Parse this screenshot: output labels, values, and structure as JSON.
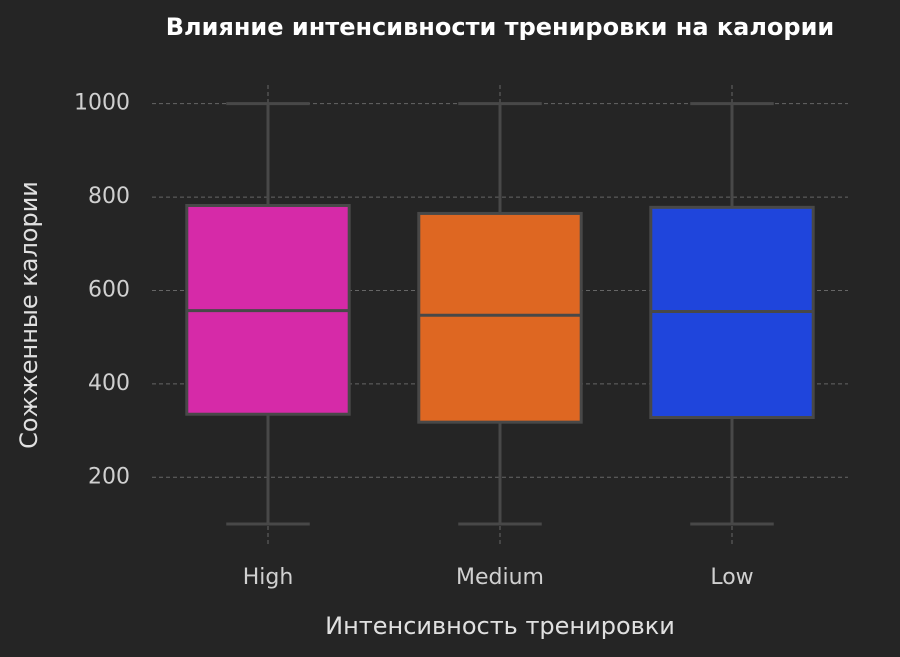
{
  "chart_data": {
    "type": "box",
    "title": "Влияние интенсивности тренировки на калории",
    "x_label": "Интенсивность тренировки",
    "y_label": "Сожженные калории",
    "categories": [
      "High",
      "Medium",
      "Low"
    ],
    "colors": [
      "#d62aa8",
      "#de6722",
      "#1f45dc"
    ],
    "boxes": [
      {
        "min": 100,
        "q1": 335,
        "median": 557,
        "q3": 782,
        "max": 1000
      },
      {
        "min": 100,
        "q1": 318,
        "median": 547,
        "q3": 765,
        "max": 1000
      },
      {
        "min": 100,
        "q1": 328,
        "median": 555,
        "q3": 778,
        "max": 1000
      }
    ],
    "ylim": [
      55,
      1040
    ],
    "yticks": [
      200,
      400,
      600,
      800,
      1000
    ],
    "grid": true
  }
}
